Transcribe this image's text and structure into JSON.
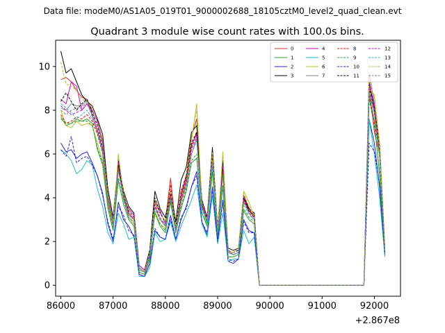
{
  "chart_data": {
    "type": "line",
    "suptitle": "Data file: modeM0/AS1A05_019T01_9000002688_18105cztM0_level2_quad_clean.evt",
    "title": "Quadrant 3 module wise count rates with 100.0s bins.",
    "xlabel": "",
    "ylabel": "",
    "x_offset_label": "+2.867e8",
    "xlim": [
      85900,
      92500
    ],
    "ylim": [
      -0.5,
      11.2
    ],
    "xticks": [
      86000,
      87000,
      88000,
      89000,
      90000,
      91000,
      92000
    ],
    "yticks": [
      0,
      2,
      4,
      6,
      8,
      10
    ],
    "grid": false,
    "legend_position": "top-right",
    "x": [
      86000,
      86100,
      86200,
      86300,
      86400,
      86500,
      86600,
      86700,
      86800,
      86900,
      87000,
      87100,
      87200,
      87300,
      87400,
      87500,
      87600,
      87700,
      87800,
      87900,
      88000,
      88100,
      88200,
      88300,
      88400,
      88500,
      88600,
      88700,
      88800,
      88900,
      89000,
      89100,
      89200,
      89300,
      89400,
      89500,
      89600,
      89700,
      89800,
      89900,
      90000,
      90100,
      90200,
      90300,
      90400,
      90500,
      90600,
      90700,
      90800,
      90900,
      91000,
      91100,
      91200,
      91300,
      91400,
      91500,
      91600,
      91700,
      91800,
      91900,
      92000,
      92100,
      92200
    ],
    "series": [
      {
        "name": "0",
        "color": "#d62728",
        "dash": false,
        "values": [
          9.4,
          9.5,
          9.3,
          8.9,
          8.6,
          8.5,
          8.0,
          7.5,
          6.6,
          4.1,
          2.9,
          5.7,
          4.2,
          3.3,
          3.0,
          0.8,
          0.6,
          1.5,
          3.8,
          3.3,
          2.9,
          4.9,
          2.6,
          4.0,
          5.0,
          6.8,
          7.6,
          3.6,
          3.1,
          5.6,
          2.5,
          5.2,
          1.5,
          1.4,
          1.5,
          4.0,
          3.5,
          3.1,
          0,
          0,
          0,
          0,
          0,
          0,
          0,
          0,
          0,
          0,
          0,
          0,
          0,
          0,
          0,
          0,
          0,
          0,
          0,
          0,
          0,
          9.0,
          7.0,
          6.0,
          1.6
        ]
      },
      {
        "name": "1",
        "color": "#2ca02c",
        "dash": false,
        "values": [
          7.7,
          7.3,
          7.4,
          7.6,
          7.5,
          7.6,
          7.4,
          6.2,
          5.5,
          3.5,
          2.5,
          4.8,
          3.7,
          3.0,
          2.7,
          0.6,
          0.5,
          1.2,
          3.3,
          2.7,
          2.4,
          3.8,
          2.4,
          3.5,
          4.3,
          5.6,
          5.8,
          3.3,
          2.7,
          5.2,
          2.2,
          4.5,
          1.3,
          1.3,
          1.4,
          3.4,
          3.0,
          2.8,
          0,
          0,
          0,
          0,
          0,
          0,
          0,
          0,
          0,
          0,
          0,
          0,
          0,
          0,
          0,
          0,
          0,
          0,
          0,
          0,
          0,
          8.6,
          7.5,
          5.0,
          1.5
        ]
      },
      {
        "name": "2",
        "color": "#1f1fdf",
        "dash": false,
        "values": [
          6.5,
          6.1,
          6.2,
          5.8,
          6.0,
          6.1,
          5.6,
          5.0,
          4.2,
          2.8,
          2.0,
          3.8,
          3.0,
          2.7,
          2.2,
          0.5,
          0.4,
          1.0,
          2.5,
          2.2,
          2.1,
          3.2,
          2.1,
          3.0,
          3.6,
          4.5,
          5.2,
          2.9,
          2.3,
          4.5,
          2.0,
          3.9,
          1.1,
          1.0,
          1.2,
          3.0,
          2.5,
          2.4,
          0,
          0,
          0,
          0,
          0,
          0,
          0,
          0,
          0,
          0,
          0,
          0,
          0,
          0,
          0,
          0,
          0,
          0,
          0,
          0,
          0,
          7.6,
          6.5,
          4.5,
          1.4
        ]
      },
      {
        "name": "3",
        "color": "#000000",
        "dash": false,
        "values": [
          10.7,
          9.7,
          9.9,
          9.3,
          8.7,
          8.4,
          8.2,
          7.6,
          6.9,
          4.4,
          3.1,
          5.7,
          4.3,
          3.6,
          3.3,
          0.9,
          0.7,
          1.6,
          4.3,
          3.5,
          3.1,
          4.3,
          2.9,
          4.8,
          5.4,
          7.0,
          7.3,
          3.9,
          3.1,
          6.3,
          2.6,
          5.7,
          1.7,
          1.6,
          1.7,
          4.1,
          3.5,
          3.3,
          0,
          0,
          0,
          0,
          0,
          0,
          0,
          0,
          0,
          0,
          0,
          0,
          0,
          0,
          0,
          0,
          0,
          0,
          0,
          0,
          0,
          9.3,
          8.1,
          6.5,
          1.7
        ]
      },
      {
        "name": "4",
        "color": "#cc00cc",
        "dash": false,
        "values": [
          8.5,
          8.3,
          9.3,
          9.1,
          8.0,
          8.3,
          8.0,
          7.5,
          6.5,
          4.1,
          2.8,
          5.6,
          4.0,
          3.5,
          3.2,
          0.9,
          0.7,
          1.5,
          3.9,
          3.4,
          2.8,
          4.2,
          2.6,
          4.2,
          4.9,
          6.4,
          6.9,
          3.8,
          3.0,
          5.9,
          2.6,
          5.4,
          1.6,
          1.4,
          1.5,
          4.1,
          3.4,
          3.2,
          0,
          0,
          0,
          0,
          0,
          0,
          0,
          0,
          0,
          0,
          0,
          0,
          0,
          0,
          0,
          0,
          0,
          0,
          0,
          0,
          0,
          9.7,
          8.3,
          6.0,
          1.6
        ]
      },
      {
        "name": "5",
        "color": "#17becf",
        "dash": false,
        "values": [
          6.2,
          6.0,
          5.7,
          5.1,
          5.3,
          5.7,
          5.5,
          4.4,
          3.6,
          2.4,
          1.9,
          3.3,
          2.8,
          2.1,
          2.2,
          0.4,
          0.4,
          0.8,
          2.4,
          2.0,
          2.1,
          2.9,
          2.0,
          2.7,
          3.3,
          3.9,
          4.6,
          2.8,
          2.2,
          4.1,
          1.9,
          3.3,
          1.1,
          1.2,
          1.2,
          2.5,
          1.9,
          2.2,
          0,
          0,
          0,
          0,
          0,
          0,
          0,
          0,
          0,
          0,
          0,
          0,
          0,
          0,
          0,
          0,
          0,
          0,
          0,
          0,
          0,
          7.6,
          6.0,
          4.0,
          1.3
        ]
      },
      {
        "name": "6",
        "color": "#bcbd22",
        "dash": false,
        "values": [
          8.0,
          7.3,
          7.2,
          7.5,
          7.3,
          7.4,
          7.3,
          6.5,
          5.7,
          3.7,
          2.7,
          6.0,
          4.1,
          3.1,
          2.8,
          0.7,
          0.6,
          1.3,
          3.4,
          2.8,
          2.6,
          4.1,
          2.5,
          3.9,
          4.8,
          6.6,
          8.3,
          3.6,
          2.9,
          5.9,
          2.4,
          6.1,
          1.5,
          1.5,
          1.7,
          4.3,
          3.8,
          3.1,
          0,
          0,
          0,
          0,
          0,
          0,
          0,
          0,
          0,
          0,
          0,
          0,
          0,
          0,
          0,
          0,
          0,
          0,
          0,
          0,
          0,
          9.0,
          8.7,
          6.5,
          1.6
        ]
      },
      {
        "name": "7",
        "color": "#7f7f7f",
        "dash": false,
        "values": [
          8.1,
          8.0,
          8.3,
          8.2,
          8.2,
          8.5,
          7.8,
          7.1,
          6.1,
          3.9,
          2.7,
          5.4,
          4.0,
          3.2,
          3.0,
          0.8,
          0.6,
          1.4,
          3.6,
          3.0,
          2.7,
          4.0,
          2.5,
          3.8,
          4.6,
          6.0,
          6.7,
          3.6,
          2.9,
          5.6,
          2.4,
          5.1,
          1.5,
          1.4,
          1.5,
          3.9,
          3.3,
          3.0,
          0,
          0,
          0,
          0,
          0,
          0,
          0,
          0,
          0,
          0,
          0,
          0,
          0,
          0,
          0,
          0,
          0,
          0,
          0,
          0,
          0,
          8.8,
          8.0,
          6.0,
          1.6
        ]
      },
      {
        "name": "8",
        "color": "#ff0000",
        "dash": true,
        "values": [
          7.8,
          7.4,
          7.5,
          7.7,
          7.6,
          7.8,
          7.5,
          6.9,
          6.0,
          3.8,
          2.8,
          5.3,
          3.9,
          3.1,
          2.9,
          0.7,
          0.6,
          1.3,
          3.6,
          3.0,
          2.8,
          4.6,
          2.5,
          4.1,
          4.8,
          6.3,
          7.0,
          3.6,
          3.0,
          5.8,
          2.4,
          5.3,
          1.5,
          1.4,
          1.5,
          3.9,
          3.4,
          3.1,
          0,
          0,
          0,
          0,
          0,
          0,
          0,
          0,
          0,
          0,
          0,
          0,
          0,
          0,
          0,
          0,
          0,
          0,
          0,
          0,
          0,
          8.7,
          7.5,
          6.0,
          1.6
        ]
      },
      {
        "name": "9",
        "color": "#2ca02c",
        "dash": true,
        "values": [
          7.6,
          7.4,
          7.4,
          7.5,
          7.5,
          7.5,
          7.3,
          6.3,
          5.6,
          3.6,
          2.6,
          4.9,
          3.7,
          3.0,
          2.7,
          0.6,
          0.5,
          1.2,
          3.3,
          2.8,
          2.5,
          3.9,
          2.4,
          3.6,
          4.4,
          5.7,
          6.0,
          3.3,
          2.8,
          5.3,
          2.3,
          4.6,
          1.3,
          1.3,
          1.4,
          3.5,
          3.1,
          2.9,
          0,
          0,
          0,
          0,
          0,
          0,
          0,
          0,
          0,
          0,
          0,
          0,
          0,
          0,
          0,
          0,
          0,
          0,
          0,
          0,
          0,
          8.5,
          7.3,
          5.2,
          1.5
        ]
      },
      {
        "name": "10",
        "color": "#1f1fdf",
        "dash": true,
        "values": [
          6.2,
          5.9,
          6.8,
          5.6,
          5.8,
          5.9,
          5.5,
          5.0,
          4.1,
          2.9,
          2.1,
          3.6,
          3.2,
          2.5,
          2.3,
          0.5,
          0.4,
          1.0,
          2.6,
          2.2,
          2.1,
          3.0,
          2.1,
          3.1,
          3.5,
          4.5,
          5.0,
          2.9,
          2.4,
          4.4,
          2.0,
          3.8,
          1.2,
          1.1,
          1.2,
          2.9,
          2.4,
          2.4,
          0,
          0,
          0,
          0,
          0,
          0,
          0,
          0,
          0,
          0,
          0,
          0,
          0,
          0,
          0,
          0,
          0,
          0,
          0,
          0,
          0,
          6.5,
          6.1,
          4.6,
          1.4
        ]
      },
      {
        "name": "11",
        "color": "#000000",
        "dash": true,
        "values": [
          8.4,
          8.8,
          8.4,
          8.0,
          8.3,
          8.5,
          7.9,
          7.3,
          6.3,
          4.2,
          2.9,
          5.5,
          4.1,
          3.4,
          3.1,
          0.8,
          0.6,
          1.5,
          4.0,
          3.3,
          2.9,
          4.1,
          2.7,
          4.3,
          5.0,
          6.5,
          7.0,
          3.7,
          3.0,
          6.0,
          2.5,
          5.3,
          1.6,
          1.5,
          1.6,
          4.0,
          3.4,
          3.2,
          0,
          0,
          0,
          0,
          0,
          0,
          0,
          0,
          0,
          0,
          0,
          0,
          0,
          0,
          0,
          0,
          0,
          0,
          0,
          0,
          0,
          9.0,
          8.1,
          6.2,
          1.6
        ]
      },
      {
        "name": "12",
        "color": "#cc00cc",
        "dash": true,
        "values": [
          8.2,
          8.0,
          7.8,
          7.9,
          8.0,
          8.3,
          7.8,
          7.1,
          6.2,
          4.0,
          2.8,
          5.4,
          4.0,
          3.3,
          3.0,
          0.8,
          0.6,
          1.4,
          3.7,
          3.1,
          2.7,
          4.1,
          2.6,
          3.9,
          4.7,
          6.2,
          6.8,
          3.7,
          2.9,
          5.8,
          2.5,
          5.2,
          1.5,
          1.4,
          1.5,
          3.9,
          3.3,
          3.1,
          0,
          0,
          0,
          0,
          0,
          0,
          0,
          0,
          0,
          0,
          0,
          0,
          0,
          0,
          0,
          0,
          0,
          0,
          0,
          0,
          0,
          9.2,
          8.0,
          6.0,
          1.6
        ]
      },
      {
        "name": "13",
        "color": "#17becf",
        "dash": true,
        "values": [
          8.3,
          8.1,
          7.9,
          7.6,
          7.8,
          8.0,
          7.6,
          7.0,
          6.0,
          3.9,
          2.7,
          5.2,
          3.9,
          3.1,
          2.9,
          0.7,
          0.6,
          1.3,
          3.5,
          3.0,
          2.7,
          4.0,
          2.5,
          3.8,
          4.5,
          6.0,
          6.6,
          3.5,
          2.8,
          5.6,
          2.4,
          5.0,
          1.5,
          1.4,
          1.5,
          3.7,
          3.2,
          3.0,
          0,
          0,
          0,
          0,
          0,
          0,
          0,
          0,
          0,
          0,
          0,
          0,
          0,
          0,
          0,
          0,
          0,
          0,
          0,
          0,
          0,
          8.8,
          7.8,
          5.8,
          1.6
        ]
      },
      {
        "name": "14",
        "color": "#bcbd22",
        "dash": true,
        "values": [
          10.2,
          9.2,
          9.1,
          8.9,
          8.5,
          8.4,
          8.1,
          7.4,
          6.5,
          4.2,
          2.9,
          5.9,
          4.2,
          3.4,
          3.1,
          0.8,
          0.6,
          1.5,
          3.9,
          3.3,
          2.9,
          4.3,
          2.7,
          4.3,
          5.1,
          6.8,
          8.0,
          3.8,
          3.0,
          6.1,
          2.6,
          6.0,
          1.6,
          1.5,
          1.7,
          4.2,
          3.6,
          3.2,
          0,
          0,
          0,
          0,
          0,
          0,
          0,
          0,
          0,
          0,
          0,
          0,
          0,
          0,
          0,
          0,
          0,
          0,
          0,
          0,
          0,
          9.5,
          8.5,
          6.3,
          1.6
        ]
      },
      {
        "name": "15",
        "color": "#7f7f7f",
        "dash": true,
        "values": [
          8.0,
          7.8,
          8.0,
          8.1,
          8.1,
          8.4,
          7.7,
          7.0,
          6.1,
          3.9,
          2.7,
          5.3,
          4.0,
          3.2,
          3.0,
          0.8,
          0.6,
          1.4,
          3.6,
          3.0,
          2.7,
          4.0,
          2.5,
          3.8,
          4.6,
          6.0,
          6.7,
          3.6,
          2.9,
          5.7,
          2.4,
          5.1,
          1.5,
          1.4,
          1.5,
          3.8,
          3.3,
          3.0,
          0,
          0,
          0,
          0,
          0,
          0,
          0,
          0,
          0,
          0,
          0,
          0,
          0,
          0,
          0,
          0,
          0,
          0,
          0,
          0,
          0,
          8.9,
          7.9,
          6.0,
          1.6
        ]
      }
    ]
  }
}
